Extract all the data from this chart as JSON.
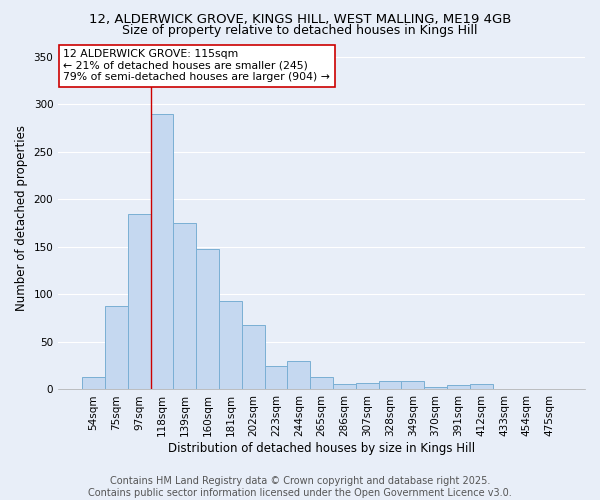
{
  "title_line1": "12, ALDERWICK GROVE, KINGS HILL, WEST MALLING, ME19 4GB",
  "title_line2": "Size of property relative to detached houses in Kings Hill",
  "xlabel": "Distribution of detached houses by size in Kings Hill",
  "ylabel": "Number of detached properties",
  "categories": [
    "54sqm",
    "75sqm",
    "97sqm",
    "118sqm",
    "139sqm",
    "160sqm",
    "181sqm",
    "202sqm",
    "223sqm",
    "244sqm",
    "265sqm",
    "286sqm",
    "307sqm",
    "328sqm",
    "349sqm",
    "370sqm",
    "391sqm",
    "412sqm",
    "433sqm",
    "454sqm",
    "475sqm"
  ],
  "values": [
    13,
    88,
    185,
    290,
    175,
    148,
    93,
    68,
    25,
    30,
    13,
    6,
    7,
    9,
    9,
    3,
    5,
    6,
    0,
    0,
    0
  ],
  "bar_color": "#c5d8f0",
  "bar_edge_color": "#7aafd4",
  "vline_color": "#cc0000",
  "annotation_text": "12 ALDERWICK GROVE: 115sqm\n← 21% of detached houses are smaller (245)\n79% of semi-detached houses are larger (904) →",
  "annotation_box_color": "#ffffff",
  "annotation_box_edge": "#cc0000",
  "ylim": [
    0,
    360
  ],
  "yticks": [
    0,
    50,
    100,
    150,
    200,
    250,
    300,
    350
  ],
  "bg_color": "#e8eef8",
  "grid_color": "#ffffff",
  "footer_line1": "Contains HM Land Registry data © Crown copyright and database right 2025.",
  "footer_line2": "Contains public sector information licensed under the Open Government Licence v3.0.",
  "title_fontsize": 9.5,
  "subtitle_fontsize": 9,
  "axis_label_fontsize": 8.5,
  "tick_fontsize": 7.5,
  "annotation_fontsize": 7.8,
  "footer_fontsize": 7
}
